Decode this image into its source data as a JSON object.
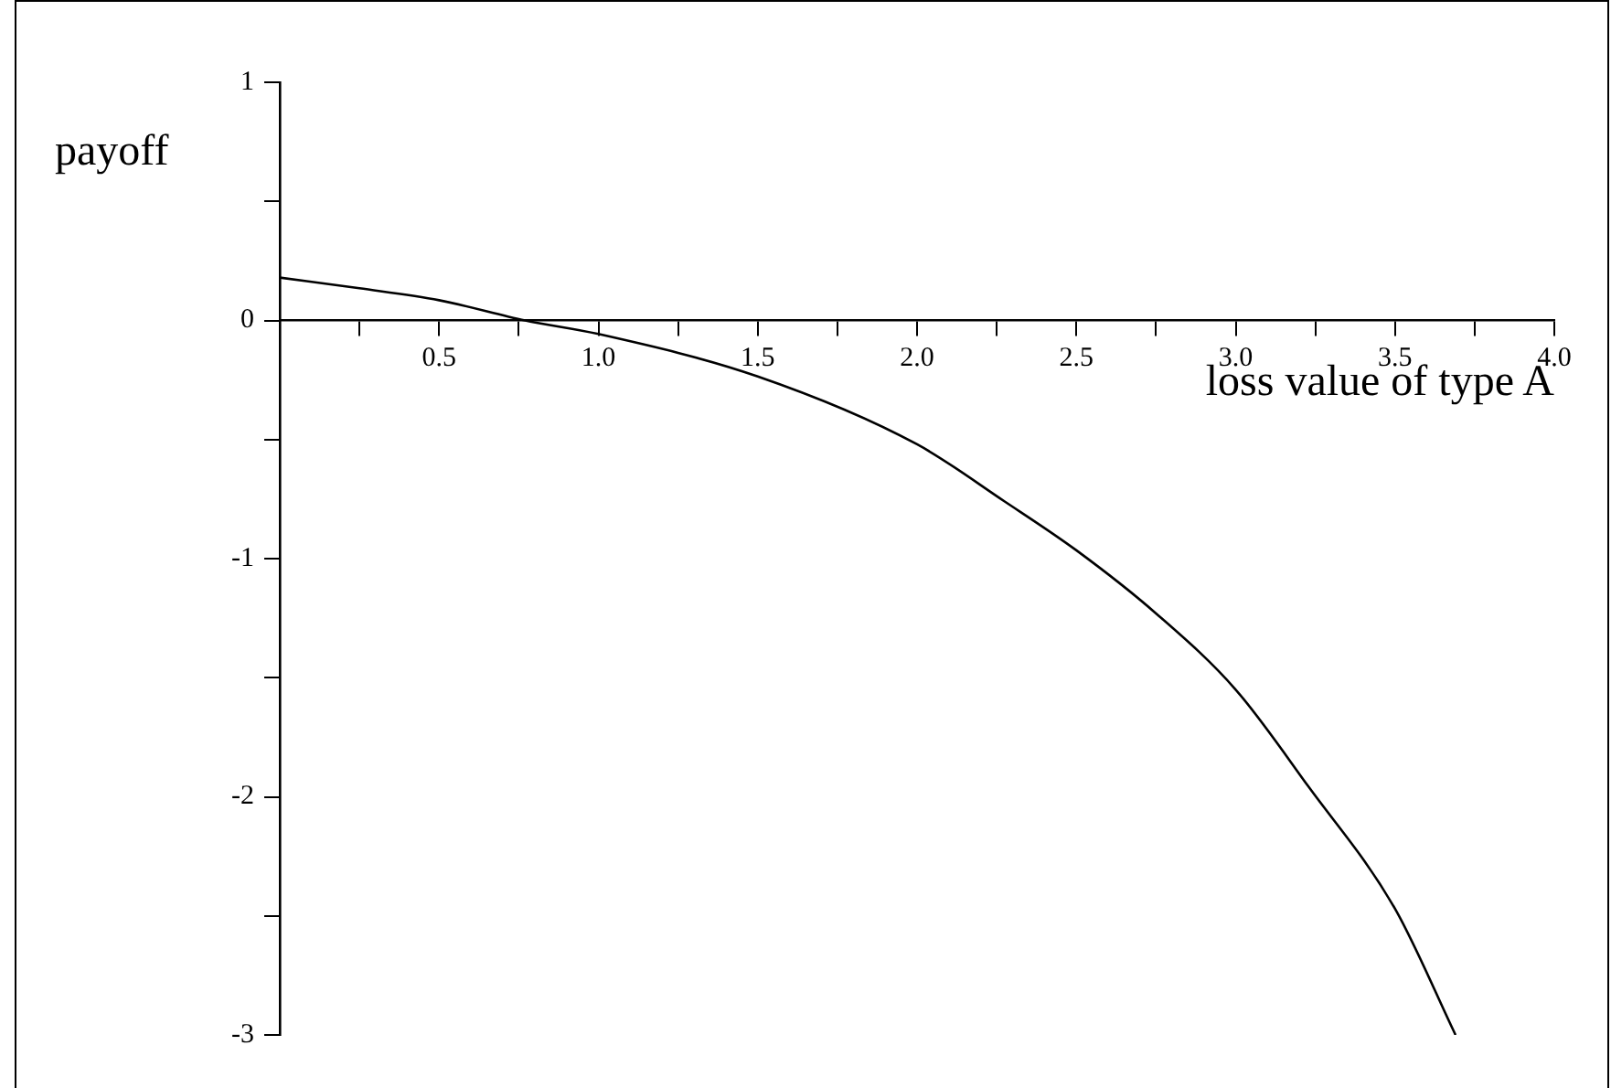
{
  "chart_data": {
    "type": "line",
    "xlabel": "loss value of type A",
    "ylabel": "payoff",
    "x": [
      0,
      0.25,
      0.5,
      0.77,
      1.0,
      1.5,
      2.0,
      2.275,
      2.5,
      2.75,
      3.0,
      3.23,
      3.5,
      3.69
    ],
    "series": [
      {
        "color": "#000000",
        "values": [
          0.18,
          0.135,
          0.085,
          0,
          -0.057,
          -0.235,
          -0.52,
          -0.76,
          -0.965,
          -1.23,
          -1.55,
          -1.96,
          -2.47,
          -3.0
        ]
      }
    ],
    "xlim": [
      0,
      4
    ],
    "ylim": [
      -3,
      1
    ],
    "xticks": [
      {
        "value": 0.25,
        "label": null
      },
      {
        "value": 0.5,
        "label": "0.5"
      },
      {
        "value": 0.75,
        "label": null
      },
      {
        "value": 1,
        "label": "1.0"
      },
      {
        "value": 1.25,
        "label": null
      },
      {
        "value": 1.5,
        "label": "1.5"
      },
      {
        "value": 1.75,
        "label": null
      },
      {
        "value": 2,
        "label": "2.0"
      },
      {
        "value": 2.25,
        "label": null
      },
      {
        "value": 2.5,
        "label": "2.5"
      },
      {
        "value": 2.75,
        "label": null
      },
      {
        "value": 3,
        "label": "3.0"
      },
      {
        "value": 3.25,
        "label": null
      },
      {
        "value": 3.5,
        "label": "3.5"
      },
      {
        "value": 3.75,
        "label": null
      },
      {
        "value": 4,
        "label": "4.0"
      }
    ],
    "yticks": [
      1,
      {
        "value": 0.5,
        "label": null
      },
      0,
      {
        "value": -0.5,
        "label": null
      },
      -1,
      {
        "value": -1.5,
        "label": null
      },
      -2,
      {
        "value": -2.5,
        "label": null
      },
      -3
    ],
    "grid": false,
    "legend": false,
    "marker": "none",
    "line_style": "solid"
  }
}
